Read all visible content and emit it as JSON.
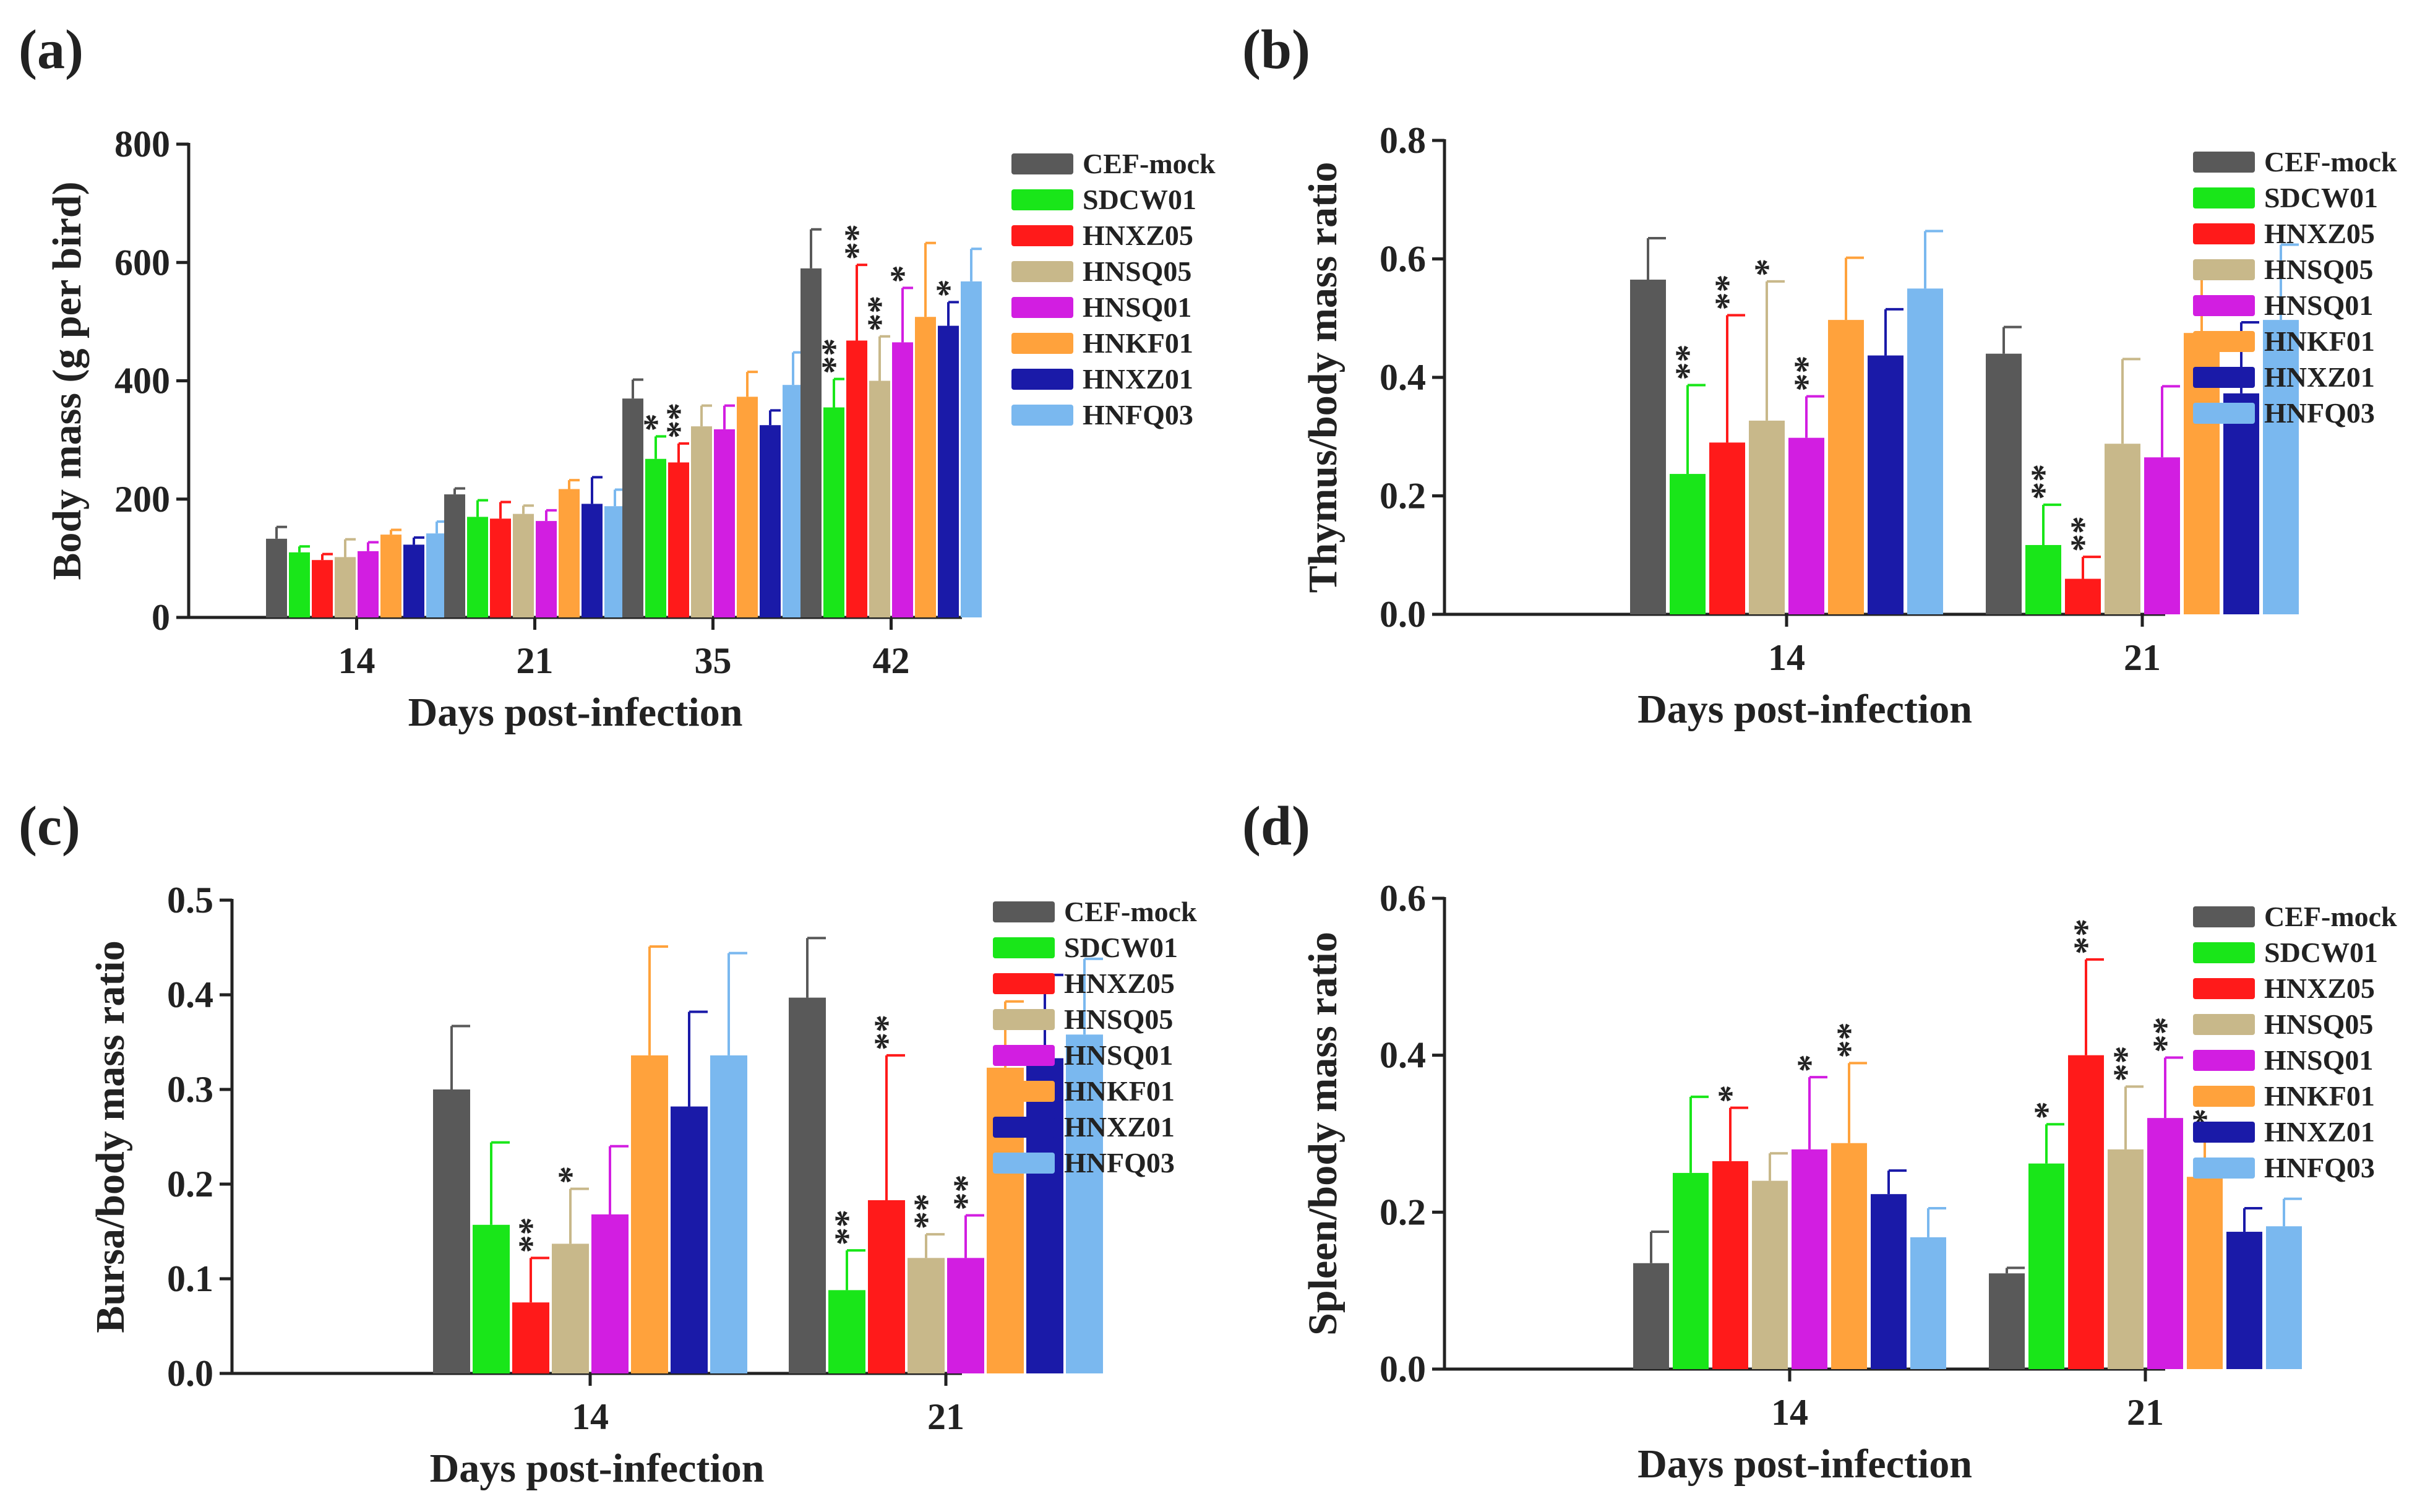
{
  "figure": {
    "series_names": [
      "CEF-mock",
      "SDCW01",
      "HNXZ05",
      "HNSQ05",
      "HNSQ01",
      "HNKF01",
      "HNXZ01",
      "HNFQ03"
    ],
    "series_colors": [
      "#595959",
      "#19e619",
      "#ff1a1a",
      "#c8b88a",
      "#d21ee1",
      "#ffa23c",
      "#1a1aa8",
      "#7ab8ef"
    ]
  },
  "chart_data": [
    {
      "id": "a",
      "type": "bar",
      "panel_label": "(a)",
      "title": "",
      "xlabel": "Days post-infection",
      "ylabel": "Body mass (g per bird)",
      "ylim": [
        0,
        800
      ],
      "yticks": [
        "0",
        "200",
        "400",
        "600",
        "800"
      ],
      "categories": [
        "14",
        "21",
        "35",
        "42"
      ],
      "legend_position": "right",
      "series": [
        {
          "name": "CEF-mock",
          "values": [
            133,
            208,
            370,
            590
          ],
          "errors": [
            20,
            10,
            32,
            66
          ],
          "sig": [
            "",
            "",
            "",
            ""
          ]
        },
        {
          "name": "SDCW01",
          "values": [
            110,
            170,
            268,
            355
          ],
          "errors": [
            10,
            28,
            38,
            48
          ],
          "sig": [
            "",
            "",
            "*",
            "**"
          ]
        },
        {
          "name": "HNXZ05",
          "values": [
            97,
            167,
            262,
            468
          ],
          "errors": [
            10,
            28,
            32,
            128
          ],
          "sig": [
            "",
            "",
            "**",
            "**"
          ]
        },
        {
          "name": "HNSQ05",
          "values": [
            102,
            175,
            323,
            400
          ],
          "errors": [
            30,
            14,
            35,
            75
          ],
          "sig": [
            "",
            "",
            "",
            "**"
          ]
        },
        {
          "name": "HNSQ01",
          "values": [
            112,
            163,
            318,
            465
          ],
          "errors": [
            15,
            18,
            40,
            92
          ],
          "sig": [
            "",
            "",
            "",
            "*"
          ]
        },
        {
          "name": "HNKF01",
          "values": [
            140,
            217,
            373,
            508
          ],
          "errors": [
            8,
            15,
            42,
            125
          ],
          "sig": [
            "",
            "",
            "",
            ""
          ]
        },
        {
          "name": "HNXZ01",
          "values": [
            123,
            192,
            325,
            493
          ],
          "errors": [
            12,
            45,
            25,
            40
          ],
          "sig": [
            "",
            "",
            "",
            "*"
          ]
        },
        {
          "name": "HNFQ03",
          "values": [
            142,
            188,
            393,
            568
          ],
          "errors": [
            20,
            28,
            55,
            55
          ],
          "sig": [
            "",
            "",
            "",
            ""
          ]
        }
      ]
    },
    {
      "id": "b",
      "type": "bar",
      "panel_label": "(b)",
      "title": "",
      "xlabel": "Days post-infection",
      "ylabel": "Thymus/body mass ratio",
      "ylim": [
        0,
        0.8
      ],
      "yticks": [
        "0.0",
        "0.2",
        "0.4",
        "0.6",
        "0.8"
      ],
      "categories": [
        "14",
        "21"
      ],
      "legend_position": "right",
      "series": [
        {
          "name": "CEF-mock",
          "values": [
            0.565,
            0.44
          ],
          "errors": [
            0.07,
            0.045
          ],
          "sig": [
            "",
            ""
          ]
        },
        {
          "name": "SDCW01",
          "values": [
            0.237,
            0.117
          ],
          "errors": [
            0.15,
            0.068
          ],
          "sig": [
            "**",
            "**"
          ]
        },
        {
          "name": "HNXZ05",
          "values": [
            0.29,
            0.06
          ],
          "errors": [
            0.215,
            0.037
          ],
          "sig": [
            "**",
            "**"
          ]
        },
        {
          "name": "HNSQ05",
          "values": [
            0.327,
            0.288
          ],
          "errors": [
            0.235,
            0.143
          ],
          "sig": [
            "*",
            ""
          ]
        },
        {
          "name": "HNSQ01",
          "values": [
            0.298,
            0.265
          ],
          "errors": [
            0.07,
            0.12
          ],
          "sig": [
            "**",
            ""
          ]
        },
        {
          "name": "HNKF01",
          "values": [
            0.497,
            0.475
          ],
          "errors": [
            0.105,
            0.107
          ],
          "sig": [
            "",
            ""
          ]
        },
        {
          "name": "HNXZ01",
          "values": [
            0.437,
            0.373
          ],
          "errors": [
            0.078,
            0.12
          ],
          "sig": [
            "",
            ""
          ]
        },
        {
          "name": "HNFQ03",
          "values": [
            0.55,
            0.497
          ],
          "errors": [
            0.097,
            0.127
          ],
          "sig": [
            "",
            ""
          ]
        }
      ]
    },
    {
      "id": "c",
      "type": "bar",
      "panel_label": "(c)",
      "title": "",
      "xlabel": "Days post-infection",
      "ylabel": "Bursa/body mass ratio",
      "ylim": [
        0,
        0.5
      ],
      "yticks": [
        "0.0",
        "0.1",
        "0.2",
        "0.3",
        "0.4",
        "0.5"
      ],
      "categories": [
        "14",
        "21"
      ],
      "legend_position": "right",
      "series": [
        {
          "name": "CEF-mock",
          "values": [
            0.3,
            0.397
          ],
          "errors": [
            0.067,
            0.063
          ],
          "sig": [
            "",
            ""
          ]
        },
        {
          "name": "SDCW01",
          "values": [
            0.157,
            0.088
          ],
          "errors": [
            0.087,
            0.042
          ],
          "sig": [
            "",
            "**"
          ]
        },
        {
          "name": "HNXZ05",
          "values": [
            0.075,
            0.183
          ],
          "errors": [
            0.047,
            0.153
          ],
          "sig": [
            "**",
            "**"
          ]
        },
        {
          "name": "HNSQ05",
          "values": [
            0.137,
            0.122
          ],
          "errors": [
            0.058,
            0.025
          ],
          "sig": [
            "*",
            "**"
          ]
        },
        {
          "name": "HNSQ01",
          "values": [
            0.168,
            0.122
          ],
          "errors": [
            0.072,
            0.045
          ],
          "sig": [
            "",
            "**"
          ]
        },
        {
          "name": "HNKF01",
          "values": [
            0.336,
            0.323
          ],
          "errors": [
            0.115,
            0.07
          ],
          "sig": [
            "",
            ""
          ]
        },
        {
          "name": "HNXZ01",
          "values": [
            0.282,
            0.333
          ],
          "errors": [
            0.1,
            0.088
          ],
          "sig": [
            "",
            ""
          ]
        },
        {
          "name": "HNFQ03",
          "values": [
            0.336,
            0.358
          ],
          "errors": [
            0.108,
            0.08
          ],
          "sig": [
            "",
            ""
          ]
        }
      ]
    },
    {
      "id": "d",
      "type": "bar",
      "panel_label": "(d)",
      "title": "",
      "xlabel": "Days post-infection",
      "ylabel": "Spleen/body mass ratio",
      "ylim": [
        0,
        0.6
      ],
      "yticks": [
        "0.0",
        "0.2",
        "0.4",
        "0.6"
      ],
      "categories": [
        "14",
        "21"
      ],
      "legend_position": "right",
      "series": [
        {
          "name": "CEF-mock",
          "values": [
            0.135,
            0.122
          ],
          "errors": [
            0.04,
            0.007
          ],
          "sig": [
            "",
            ""
          ]
        },
        {
          "name": "SDCW01",
          "values": [
            0.25,
            0.262
          ],
          "errors": [
            0.097,
            0.05
          ],
          "sig": [
            "",
            "*"
          ]
        },
        {
          "name": "HNXZ05",
          "values": [
            0.265,
            0.4
          ],
          "errors": [
            0.068,
            0.122
          ],
          "sig": [
            "*",
            "**"
          ]
        },
        {
          "name": "HNSQ05",
          "values": [
            0.24,
            0.28
          ],
          "errors": [
            0.035,
            0.08
          ],
          "sig": [
            "",
            "**"
          ]
        },
        {
          "name": "HNSQ01",
          "values": [
            0.28,
            0.32
          ],
          "errors": [
            0.092,
            0.077
          ],
          "sig": [
            "*",
            "**"
          ]
        },
        {
          "name": "HNKF01",
          "values": [
            0.288,
            0.245
          ],
          "errors": [
            0.102,
            0.058
          ],
          "sig": [
            "**",
            "*"
          ]
        },
        {
          "name": "HNXZ01",
          "values": [
            0.223,
            0.175
          ],
          "errors": [
            0.03,
            0.03
          ],
          "sig": [
            "",
            ""
          ]
        },
        {
          "name": "HNFQ03",
          "values": [
            0.168,
            0.182
          ],
          "errors": [
            0.037,
            0.035
          ],
          "sig": [
            "",
            ""
          ]
        }
      ]
    }
  ]
}
